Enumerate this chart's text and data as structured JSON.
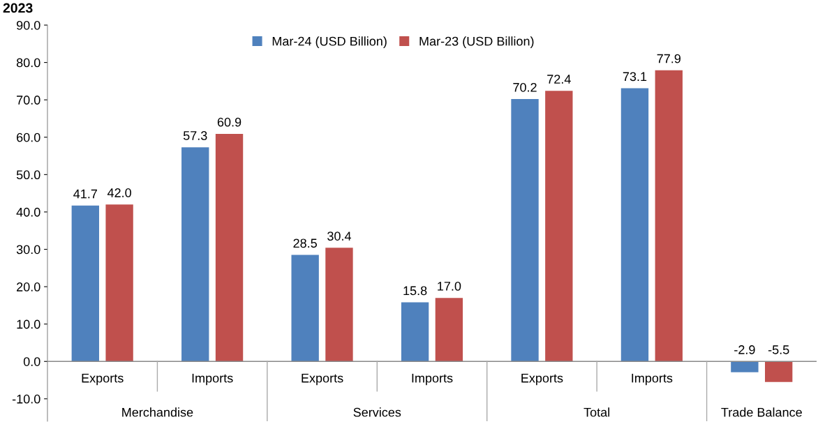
{
  "chart_data": {
    "type": "bar",
    "title": "2023",
    "categories": [
      "Exports",
      "Imports",
      "Exports",
      "Imports",
      "Exports",
      "Imports",
      null
    ],
    "annotations": [
      "Merchandise",
      "Services",
      "Total",
      "Trade Balance"
    ],
    "series": [
      {
        "name": "Mar-24 (USD Billion)",
        "color": "#4f81bd",
        "values": [
          41.7,
          57.3,
          28.5,
          15.8,
          70.2,
          73.1,
          -2.9
        ],
        "value_labels": [
          "41.7",
          "57.3",
          "28.5",
          "15.8",
          "70.2",
          "73.1",
          "-2.9"
        ]
      },
      {
        "name": "Mar-23 (USD Billion)",
        "color": "#c0504d",
        "values": [
          42.0,
          60.9,
          30.4,
          17.0,
          72.4,
          77.9,
          -5.5
        ],
        "value_labels": [
          "42.0",
          "60.9",
          "30.4",
          "17.0",
          "72.4",
          "77.9",
          "-5.5"
        ]
      }
    ],
    "ylim": [
      -16,
      90
    ],
    "yticks": [
      {
        "value": -10,
        "label": "-10.0"
      },
      {
        "value": 0,
        "label": "0.0"
      },
      {
        "value": 10,
        "label": "10.0"
      },
      {
        "value": 20,
        "label": "20.0"
      },
      {
        "value": 30,
        "label": "30.0"
      },
      {
        "value": 40,
        "label": "40.0"
      },
      {
        "value": 50,
        "label": "50.0"
      },
      {
        "value": 60,
        "label": "60.0"
      },
      {
        "value": 70,
        "label": "70.0"
      },
      {
        "value": 80,
        "label": "80.0"
      },
      {
        "value": 90,
        "label": "90.0"
      }
    ],
    "legend": "top",
    "grid": false
  }
}
